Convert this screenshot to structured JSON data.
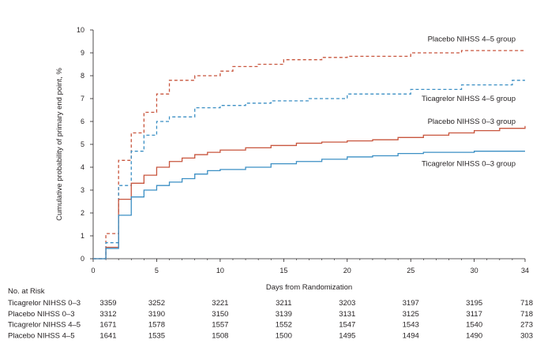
{
  "chart_data": {
    "type": "line",
    "title": "",
    "xlabel": "Days from Randomization",
    "ylabel": "Cumulative probability of primary end point, %",
    "xlim": [
      0,
      34
    ],
    "ylim": [
      0,
      10
    ],
    "x_ticks": [
      0,
      5,
      10,
      15,
      20,
      25,
      30,
      34
    ],
    "y_ticks": [
      0,
      1,
      2,
      3,
      4,
      5,
      6,
      7,
      8,
      9,
      10
    ],
    "grid": false,
    "legend": "curve labels at right end of each line",
    "series": [
      {
        "name": "Placebo NIHSS 4–5 group",
        "color": "#c8553d",
        "line_style": "dashed",
        "x": [
          0,
          1,
          2,
          3,
          4,
          5,
          6,
          8,
          10,
          11,
          13,
          15,
          18,
          20,
          25,
          29,
          34
        ],
        "y": [
          0,
          1.1,
          4.3,
          5.5,
          6.4,
          7.2,
          7.8,
          8.0,
          8.2,
          8.4,
          8.5,
          8.7,
          8.8,
          8.85,
          9.0,
          9.1,
          9.1
        ]
      },
      {
        "name": "Ticagrelor NIHSS 4–5 group",
        "color": "#3b8fc4",
        "line_style": "dashed",
        "x": [
          0,
          1,
          2,
          3,
          4,
          5,
          6,
          8,
          10,
          12,
          14,
          17,
          20,
          25,
          29,
          33,
          34
        ],
        "y": [
          0,
          0.7,
          3.2,
          4.7,
          5.4,
          6.0,
          6.2,
          6.6,
          6.7,
          6.8,
          6.9,
          7.0,
          7.2,
          7.4,
          7.6,
          7.8,
          7.8
        ]
      },
      {
        "name": "Placebo NIHSS 0–3 group",
        "color": "#c8553d",
        "line_style": "solid",
        "x": [
          0,
          1,
          2,
          3,
          4,
          5,
          6,
          7,
          8,
          9,
          10,
          12,
          14,
          16,
          18,
          20,
          22,
          24,
          26,
          28,
          30,
          32,
          34
        ],
        "y": [
          0,
          0.5,
          2.6,
          3.3,
          3.65,
          4.0,
          4.25,
          4.4,
          4.55,
          4.65,
          4.75,
          4.85,
          4.95,
          5.05,
          5.1,
          5.15,
          5.2,
          5.3,
          5.4,
          5.5,
          5.6,
          5.7,
          5.8
        ]
      },
      {
        "name": "Ticagrelor NIHSS 0–3 group",
        "color": "#3b8fc4",
        "line_style": "solid",
        "x": [
          0,
          1,
          2,
          3,
          4,
          5,
          6,
          7,
          8,
          9,
          10,
          12,
          14,
          16,
          18,
          20,
          22,
          24,
          26,
          30,
          34
        ],
        "y": [
          0,
          0.45,
          1.9,
          2.7,
          3.0,
          3.2,
          3.35,
          3.5,
          3.7,
          3.85,
          3.9,
          4.0,
          4.15,
          4.25,
          4.35,
          4.45,
          4.5,
          4.6,
          4.65,
          4.7,
          4.7
        ]
      }
    ],
    "curve_labels": [
      {
        "text": "Placebo NIHSS 4–5 group"
      },
      {
        "text": "Ticagrelor NIHSS 4–5 group"
      },
      {
        "text": "Placebo NIHSS 0–3 group"
      },
      {
        "text": "Ticagrelor NIHSS 0–3 group"
      }
    ],
    "risk_table": {
      "heading": "No. at Risk",
      "rows": [
        {
          "label": "Ticagrelor NIHSS 0–3",
          "values": [
            "3359",
            "3252",
            "3221",
            "3211",
            "3203",
            "3197",
            "3195",
            "718"
          ]
        },
        {
          "label": "Placebo NIHSS 0–3",
          "values": [
            "3312",
            "3190",
            "3150",
            "3139",
            "3131",
            "3125",
            "3117",
            "718"
          ]
        },
        {
          "label": "Ticagrelor NIHSS 4–5",
          "values": [
            "1671",
            "1578",
            "1557",
            "1552",
            "1547",
            "1543",
            "1540",
            "273"
          ]
        },
        {
          "label": "Placebo NIHSS 4–5",
          "values": [
            "1641",
            "1535",
            "1508",
            "1500",
            "1495",
            "1494",
            "1490",
            "303"
          ]
        }
      ]
    }
  }
}
